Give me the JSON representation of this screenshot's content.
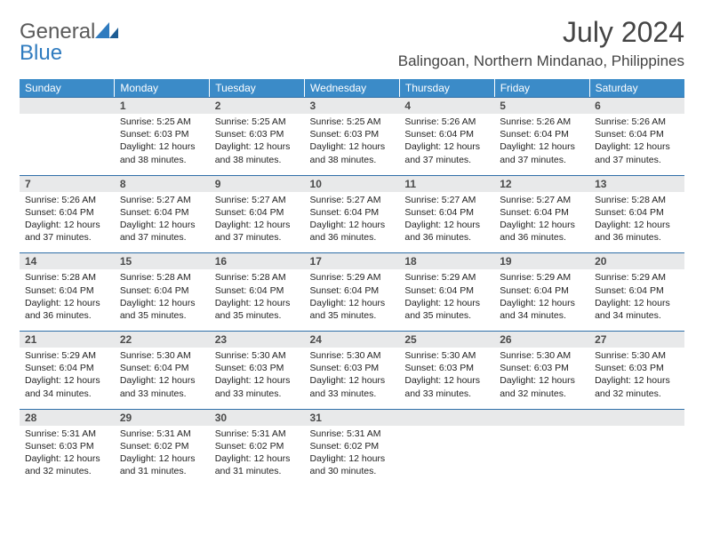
{
  "brand": {
    "part1": "General",
    "part2": "Blue"
  },
  "title": "July 2024",
  "location": "Balingoan, Northern Mindanao, Philippines",
  "colors": {
    "header_bg": "#3b8bc8",
    "header_text": "#ffffff",
    "daynum_bg": "#e8e9ea",
    "daynum_border": "#2f6fa8",
    "body_text": "#222222",
    "logo_gray": "#5a5a5a",
    "logo_blue": "#2f7bbf"
  },
  "weekdays": [
    "Sunday",
    "Monday",
    "Tuesday",
    "Wednesday",
    "Thursday",
    "Friday",
    "Saturday"
  ],
  "grid": [
    [
      null,
      {
        "n": "1",
        "sr": "5:25 AM",
        "ss": "6:03 PM",
        "dl": "12 hours and 38 minutes."
      },
      {
        "n": "2",
        "sr": "5:25 AM",
        "ss": "6:03 PM",
        "dl": "12 hours and 38 minutes."
      },
      {
        "n": "3",
        "sr": "5:25 AM",
        "ss": "6:03 PM",
        "dl": "12 hours and 38 minutes."
      },
      {
        "n": "4",
        "sr": "5:26 AM",
        "ss": "6:04 PM",
        "dl": "12 hours and 37 minutes."
      },
      {
        "n": "5",
        "sr": "5:26 AM",
        "ss": "6:04 PM",
        "dl": "12 hours and 37 minutes."
      },
      {
        "n": "6",
        "sr": "5:26 AM",
        "ss": "6:04 PM",
        "dl": "12 hours and 37 minutes."
      }
    ],
    [
      {
        "n": "7",
        "sr": "5:26 AM",
        "ss": "6:04 PM",
        "dl": "12 hours and 37 minutes."
      },
      {
        "n": "8",
        "sr": "5:27 AM",
        "ss": "6:04 PM",
        "dl": "12 hours and 37 minutes."
      },
      {
        "n": "9",
        "sr": "5:27 AM",
        "ss": "6:04 PM",
        "dl": "12 hours and 37 minutes."
      },
      {
        "n": "10",
        "sr": "5:27 AM",
        "ss": "6:04 PM",
        "dl": "12 hours and 36 minutes."
      },
      {
        "n": "11",
        "sr": "5:27 AM",
        "ss": "6:04 PM",
        "dl": "12 hours and 36 minutes."
      },
      {
        "n": "12",
        "sr": "5:27 AM",
        "ss": "6:04 PM",
        "dl": "12 hours and 36 minutes."
      },
      {
        "n": "13",
        "sr": "5:28 AM",
        "ss": "6:04 PM",
        "dl": "12 hours and 36 minutes."
      }
    ],
    [
      {
        "n": "14",
        "sr": "5:28 AM",
        "ss": "6:04 PM",
        "dl": "12 hours and 36 minutes."
      },
      {
        "n": "15",
        "sr": "5:28 AM",
        "ss": "6:04 PM",
        "dl": "12 hours and 35 minutes."
      },
      {
        "n": "16",
        "sr": "5:28 AM",
        "ss": "6:04 PM",
        "dl": "12 hours and 35 minutes."
      },
      {
        "n": "17",
        "sr": "5:29 AM",
        "ss": "6:04 PM",
        "dl": "12 hours and 35 minutes."
      },
      {
        "n": "18",
        "sr": "5:29 AM",
        "ss": "6:04 PM",
        "dl": "12 hours and 35 minutes."
      },
      {
        "n": "19",
        "sr": "5:29 AM",
        "ss": "6:04 PM",
        "dl": "12 hours and 34 minutes."
      },
      {
        "n": "20",
        "sr": "5:29 AM",
        "ss": "6:04 PM",
        "dl": "12 hours and 34 minutes."
      }
    ],
    [
      {
        "n": "21",
        "sr": "5:29 AM",
        "ss": "6:04 PM",
        "dl": "12 hours and 34 minutes."
      },
      {
        "n": "22",
        "sr": "5:30 AM",
        "ss": "6:04 PM",
        "dl": "12 hours and 33 minutes."
      },
      {
        "n": "23",
        "sr": "5:30 AM",
        "ss": "6:03 PM",
        "dl": "12 hours and 33 minutes."
      },
      {
        "n": "24",
        "sr": "5:30 AM",
        "ss": "6:03 PM",
        "dl": "12 hours and 33 minutes."
      },
      {
        "n": "25",
        "sr": "5:30 AM",
        "ss": "6:03 PM",
        "dl": "12 hours and 33 minutes."
      },
      {
        "n": "26",
        "sr": "5:30 AM",
        "ss": "6:03 PM",
        "dl": "12 hours and 32 minutes."
      },
      {
        "n": "27",
        "sr": "5:30 AM",
        "ss": "6:03 PM",
        "dl": "12 hours and 32 minutes."
      }
    ],
    [
      {
        "n": "28",
        "sr": "5:31 AM",
        "ss": "6:03 PM",
        "dl": "12 hours and 32 minutes."
      },
      {
        "n": "29",
        "sr": "5:31 AM",
        "ss": "6:02 PM",
        "dl": "12 hours and 31 minutes."
      },
      {
        "n": "30",
        "sr": "5:31 AM",
        "ss": "6:02 PM",
        "dl": "12 hours and 31 minutes."
      },
      {
        "n": "31",
        "sr": "5:31 AM",
        "ss": "6:02 PM",
        "dl": "12 hours and 30 minutes."
      },
      null,
      null,
      null
    ]
  ],
  "labels": {
    "sunrise": "Sunrise: ",
    "sunset": "Sunset: ",
    "daylight": "Daylight: "
  }
}
